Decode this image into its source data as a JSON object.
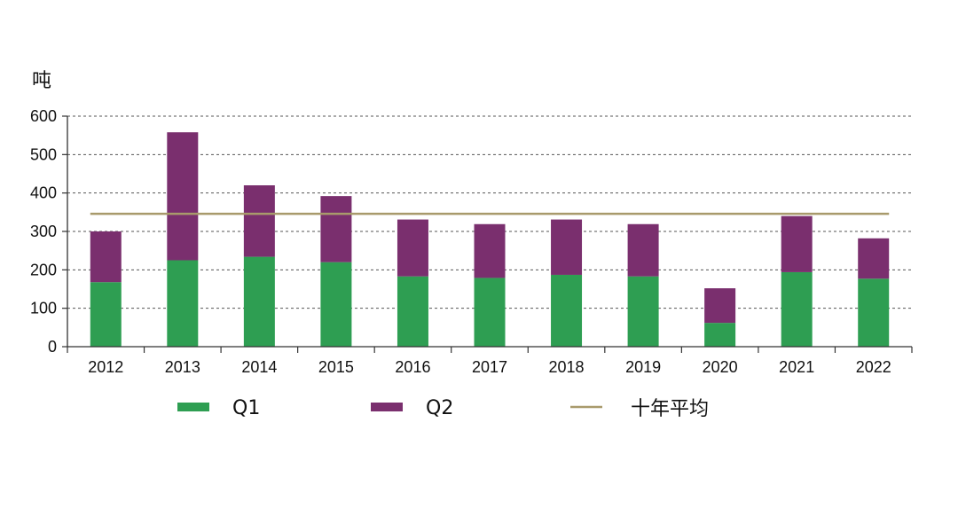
{
  "chart_data": {
    "type": "bar",
    "stacked": true,
    "unit_label": "吨",
    "categories": [
      "2012",
      "2013",
      "2014",
      "2015",
      "2016",
      "2017",
      "2018",
      "2019",
      "2020",
      "2021",
      "2022"
    ],
    "series": [
      {
        "name": "Q1",
        "color": "#2e9e52",
        "values": [
          168,
          225,
          234,
          220,
          183,
          179,
          187,
          183,
          62,
          194,
          177
        ]
      },
      {
        "name": "Q2",
        "color": "#7a2f6e",
        "values": [
          132,
          333,
          186,
          172,
          148,
          140,
          144,
          136,
          90,
          146,
          105
        ]
      }
    ],
    "reference_line": {
      "name": "十年平均",
      "color": "#a89a6b",
      "value": 346
    },
    "ylim": [
      0,
      600
    ],
    "yticks": [
      0,
      100,
      200,
      300,
      400,
      500,
      600
    ],
    "grid": true,
    "legend_position": "bottom"
  }
}
